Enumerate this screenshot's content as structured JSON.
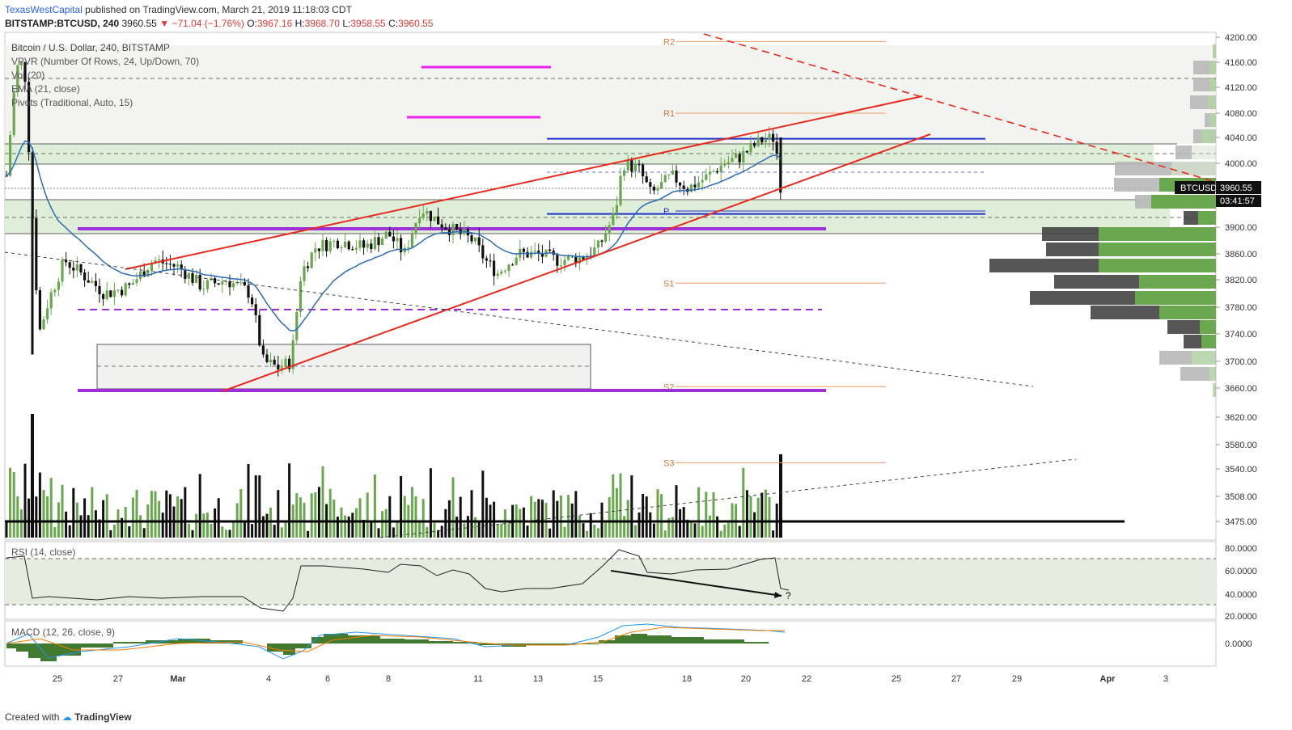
{
  "header": {
    "author": "TexasWestCapital",
    "published_text": "published on TradingView.com, March 21, 2019 11:18:03 CDT",
    "symbol": "BITSTAMP:BTCUSD, 240",
    "last": "3960.55",
    "change": "−71.04 (−1.76%)",
    "open": "3967.16",
    "high": "3968.70",
    "low": "3958.55",
    "close": "3960.55"
  },
  "legend": {
    "title": "Bitcoin / U.S. Dollar, 240, BITSTAMP",
    "vpvr": "VPVR (Number Of Rows, 24, Up/Down, 70)",
    "vol": "Vol (20)",
    "ema": "EMA (21, close)",
    "pivots": "Pivots (Traditional, Auto, 15)",
    "rsi": "RSI (14, close)",
    "macd": "MACD (12, 26, close, 9)"
  },
  "price_tag": {
    "symbol": "BTCUSD",
    "price": "3960.55",
    "countdown": "03:41:57"
  },
  "annotation_mark": "?",
  "footer": {
    "created_with": "Created with",
    "brand": "TradingView"
  },
  "colors": {
    "up": "#6aa84f",
    "down": "#111111",
    "ema": "#2d6cb5",
    "wedge": "#e82a1e",
    "magenta": "#ee22ee",
    "purple": "#9b30d9",
    "pivot": "#e8a070",
    "blue_level": "#2233cc"
  },
  "chart_data": {
    "type": "candlestick",
    "y_axis": {
      "ticks": [
        "4200.00",
        "4160.00",
        "4120.00",
        "4080.00",
        "4040.00",
        "4000.00",
        "3960.00",
        "3900.00",
        "3860.00",
        "3820.00",
        "3780.00",
        "3740.00",
        "3700.00",
        "3660.00",
        "3620.00",
        "3580.00",
        "3540.00",
        "3508.00",
        "3475.00"
      ],
      "range": [
        3470,
        4205
      ]
    },
    "x_axis": {
      "ticks": [
        "25",
        "27",
        "Mar",
        "4",
        "6",
        "8",
        "11",
        "13",
        "15",
        "18",
        "20",
        "22",
        "25",
        "27",
        "29",
        "Apr",
        "3"
      ]
    },
    "pivots": [
      {
        "label": "R2",
        "price": 4193
      },
      {
        "label": "R1",
        "price": 4080
      },
      {
        "label": "P",
        "price": 3925
      },
      {
        "label": "S1",
        "price": 3815
      },
      {
        "label": "S2",
        "price": 3662
      },
      {
        "label": "S3",
        "price": 3550
      }
    ],
    "levels": {
      "blue_top": 4038,
      "blue_bottom": 3923,
      "purple_top": 3895,
      "purple_dashed": 3775,
      "purple_bottom": 3658,
      "magenta": [
        4152,
        4072
      ],
      "current_price": 3960.55
    },
    "rsi": {
      "ticks": [
        "80.0000",
        "60.0000",
        "40.0000",
        "20.0000"
      ],
      "band": [
        30,
        70
      ]
    },
    "macd": {
      "ticks": [
        "0.0000"
      ]
    }
  }
}
